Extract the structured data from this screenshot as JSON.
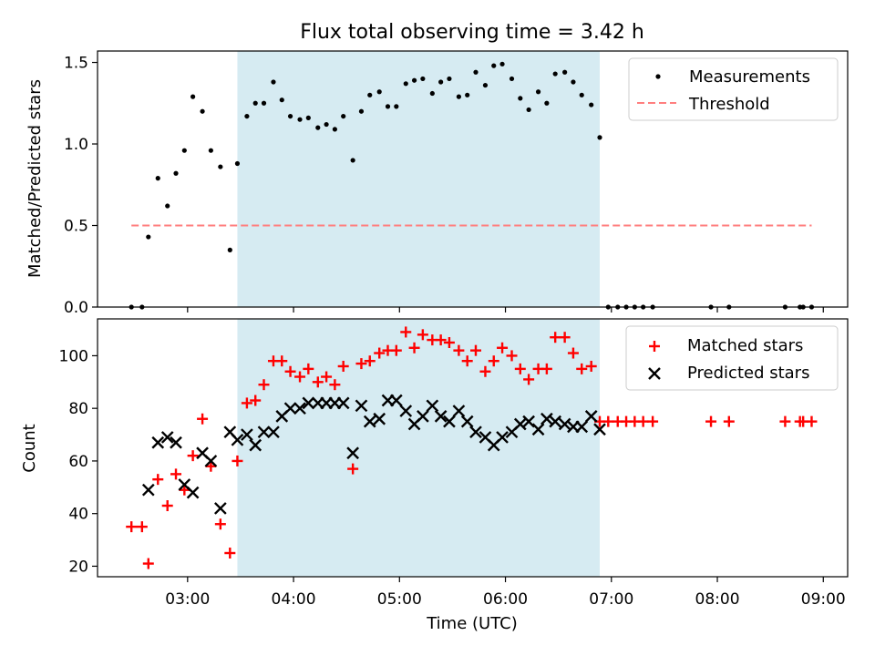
{
  "title": "Flux total observing time = 3.42 h",
  "xlabel": "Time (UTC)",
  "x_ticks": [
    "03:00",
    "04:00",
    "05:00",
    "06:00",
    "07:00",
    "08:00",
    "09:00"
  ],
  "x_tick_hours": [
    3,
    4,
    5,
    6,
    7,
    8,
    9
  ],
  "xlim_hours": [
    2.15,
    9.23
  ],
  "observing_window_hours": [
    3.47,
    6.89
  ],
  "observing_window_color": "#add8e6",
  "chart_data": [
    {
      "type": "scatter",
      "ylabel": "Matched/Predicted stars",
      "ylim": [
        0,
        1.57
      ],
      "y_ticks": [
        0.0,
        0.5,
        1.0,
        1.5
      ],
      "y_tick_labels": [
        "0.0",
        "0.5",
        "1.0",
        "1.5"
      ],
      "legend_position": "top-right",
      "series": [
        {
          "name": "Measurements",
          "marker": "dot",
          "color": "#000000",
          "points": [
            [
              2.47,
              0.0
            ],
            [
              2.57,
              0.0
            ],
            [
              2.63,
              0.43
            ],
            [
              2.72,
              0.79
            ],
            [
              2.81,
              0.62
            ],
            [
              2.89,
              0.82
            ],
            [
              2.97,
              0.96
            ],
            [
              3.05,
              1.29
            ],
            [
              3.14,
              1.2
            ],
            [
              3.22,
              0.96
            ],
            [
              3.31,
              0.86
            ],
            [
              3.4,
              0.35
            ],
            [
              3.47,
              0.88
            ],
            [
              3.56,
              1.17
            ],
            [
              3.64,
              1.25
            ],
            [
              3.72,
              1.25
            ],
            [
              3.81,
              1.38
            ],
            [
              3.89,
              1.27
            ],
            [
              3.97,
              1.17
            ],
            [
              4.06,
              1.15
            ],
            [
              4.14,
              1.16
            ],
            [
              4.23,
              1.1
            ],
            [
              4.31,
              1.12
            ],
            [
              4.39,
              1.09
            ],
            [
              4.47,
              1.17
            ],
            [
              4.56,
              0.9
            ],
            [
              4.64,
              1.2
            ],
            [
              4.72,
              1.3
            ],
            [
              4.81,
              1.32
            ],
            [
              4.89,
              1.23
            ],
            [
              4.97,
              1.23
            ],
            [
              5.06,
              1.37
            ],
            [
              5.14,
              1.39
            ],
            [
              5.22,
              1.4
            ],
            [
              5.31,
              1.31
            ],
            [
              5.39,
              1.38
            ],
            [
              5.47,
              1.4
            ],
            [
              5.56,
              1.29
            ],
            [
              5.64,
              1.3
            ],
            [
              5.72,
              1.44
            ],
            [
              5.81,
              1.36
            ],
            [
              5.89,
              1.48
            ],
            [
              5.97,
              1.49
            ],
            [
              6.06,
              1.4
            ],
            [
              6.14,
              1.28
            ],
            [
              6.22,
              1.21
            ],
            [
              6.31,
              1.32
            ],
            [
              6.39,
              1.25
            ],
            [
              6.47,
              1.43
            ],
            [
              6.56,
              1.44
            ],
            [
              6.64,
              1.38
            ],
            [
              6.72,
              1.3
            ],
            [
              6.81,
              1.24
            ],
            [
              6.89,
              1.04
            ],
            [
              6.97,
              0.0
            ],
            [
              7.06,
              0.0
            ],
            [
              7.14,
              0.0
            ],
            [
              7.22,
              0.0
            ],
            [
              7.3,
              0.0
            ],
            [
              7.39,
              0.0
            ],
            [
              7.94,
              0.0
            ],
            [
              8.11,
              0.0
            ],
            [
              8.64,
              0.0
            ],
            [
              8.78,
              0.0
            ],
            [
              8.81,
              0.0
            ],
            [
              8.89,
              0.0
            ]
          ]
        },
        {
          "name": "Threshold",
          "type": "line",
          "style": "dashed",
          "color": "#ff7f7f",
          "points": [
            [
              2.47,
              0.5
            ],
            [
              8.89,
              0.5
            ]
          ]
        }
      ]
    },
    {
      "type": "scatter",
      "ylabel": "Count",
      "xlabel": "Time (UTC)",
      "ylim": [
        16,
        114
      ],
      "y_ticks": [
        20,
        40,
        60,
        80,
        100
      ],
      "y_tick_labels": [
        "20",
        "40",
        "60",
        "80",
        "100"
      ],
      "legend_position": "top-right",
      "series": [
        {
          "name": "Matched stars",
          "marker": "plus",
          "color": "#ff0000",
          "points": [
            [
              2.47,
              35
            ],
            [
              2.57,
              35
            ],
            [
              2.63,
              21
            ],
            [
              2.72,
              53
            ],
            [
              2.81,
              43
            ],
            [
              2.89,
              55
            ],
            [
              2.97,
              49
            ],
            [
              3.05,
              62
            ],
            [
              3.14,
              76
            ],
            [
              3.22,
              58
            ],
            [
              3.31,
              36
            ],
            [
              3.4,
              25
            ],
            [
              3.47,
              60
            ],
            [
              3.56,
              82
            ],
            [
              3.64,
              83
            ],
            [
              3.72,
              89
            ],
            [
              3.81,
              98
            ],
            [
              3.89,
              98
            ],
            [
              3.97,
              94
            ],
            [
              4.06,
              92
            ],
            [
              4.14,
              95
            ],
            [
              4.23,
              90
            ],
            [
              4.31,
              92
            ],
            [
              4.39,
              89
            ],
            [
              4.47,
              96
            ],
            [
              4.56,
              57
            ],
            [
              4.64,
              97
            ],
            [
              4.72,
              98
            ],
            [
              4.81,
              101
            ],
            [
              4.89,
              102
            ],
            [
              4.97,
              102
            ],
            [
              5.06,
              109
            ],
            [
              5.14,
              103
            ],
            [
              5.22,
              108
            ],
            [
              5.31,
              106
            ],
            [
              5.39,
              106
            ],
            [
              5.47,
              105
            ],
            [
              5.56,
              102
            ],
            [
              5.64,
              98
            ],
            [
              5.72,
              102
            ],
            [
              5.81,
              94
            ],
            [
              5.89,
              98
            ],
            [
              5.97,
              103
            ],
            [
              6.06,
              100
            ],
            [
              6.14,
              95
            ],
            [
              6.22,
              91
            ],
            [
              6.31,
              95
            ],
            [
              6.39,
              95
            ],
            [
              6.47,
              107
            ],
            [
              6.56,
              107
            ],
            [
              6.64,
              101
            ],
            [
              6.72,
              95
            ],
            [
              6.81,
              96
            ],
            [
              6.89,
              75
            ],
            [
              6.97,
              75
            ],
            [
              7.06,
              75
            ],
            [
              7.14,
              75
            ],
            [
              7.22,
              75
            ],
            [
              7.3,
              75
            ],
            [
              7.39,
              75
            ],
            [
              7.94,
              75
            ],
            [
              8.11,
              75
            ],
            [
              8.64,
              75
            ],
            [
              8.78,
              75
            ],
            [
              8.81,
              75
            ],
            [
              8.89,
              75
            ]
          ]
        },
        {
          "name": "Predicted stars",
          "marker": "x",
          "color": "#000000",
          "points": [
            [
              2.63,
              49
            ],
            [
              2.72,
              67
            ],
            [
              2.81,
              69
            ],
            [
              2.89,
              67
            ],
            [
              2.97,
              51
            ],
            [
              3.05,
              48
            ],
            [
              3.14,
              63
            ],
            [
              3.22,
              60
            ],
            [
              3.31,
              42
            ],
            [
              3.4,
              71
            ],
            [
              3.47,
              68
            ],
            [
              3.56,
              70
            ],
            [
              3.64,
              66
            ],
            [
              3.72,
              71
            ],
            [
              3.81,
              71
            ],
            [
              3.89,
              77
            ],
            [
              3.97,
              80
            ],
            [
              4.06,
              80
            ],
            [
              4.14,
              82
            ],
            [
              4.23,
              82
            ],
            [
              4.31,
              82
            ],
            [
              4.39,
              82
            ],
            [
              4.47,
              82
            ],
            [
              4.56,
              63
            ],
            [
              4.64,
              81
            ],
            [
              4.72,
              75
            ],
            [
              4.81,
              76
            ],
            [
              4.89,
              83
            ],
            [
              4.97,
              83
            ],
            [
              5.06,
              79
            ],
            [
              5.14,
              74
            ],
            [
              5.22,
              77
            ],
            [
              5.31,
              81
            ],
            [
              5.39,
              77
            ],
            [
              5.47,
              75
            ],
            [
              5.56,
              79
            ],
            [
              5.64,
              75
            ],
            [
              5.72,
              71
            ],
            [
              5.81,
              69
            ],
            [
              5.89,
              66
            ],
            [
              5.97,
              69
            ],
            [
              6.06,
              71
            ],
            [
              6.14,
              74
            ],
            [
              6.22,
              75
            ],
            [
              6.31,
              72
            ],
            [
              6.39,
              76
            ],
            [
              6.47,
              75
            ],
            [
              6.56,
              74
            ],
            [
              6.64,
              73
            ],
            [
              6.72,
              73
            ],
            [
              6.81,
              77
            ],
            [
              6.89,
              72
            ]
          ]
        }
      ]
    }
  ]
}
